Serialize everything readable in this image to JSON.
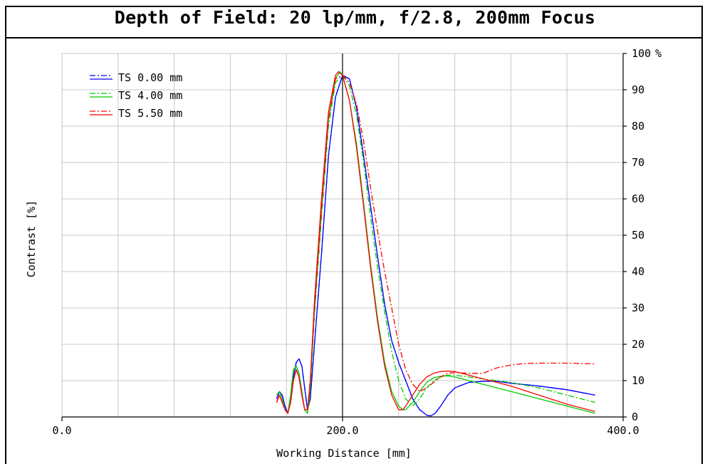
{
  "window": {
    "title": "Depth of Field: 20 lp/mm, f/2.8, 200mm Focus"
  },
  "chart_data": {
    "type": "line",
    "title": "Depth of Field: 20 lp/mm, f/2.8, 200mm Focus",
    "xlabel": "Working Distance [mm]",
    "ylabel": "Contrast [%]",
    "xlim": [
      0,
      400
    ],
    "ylim": [
      0,
      100
    ],
    "x_tick_labels": [
      "0.0",
      "200.0",
      "400.0"
    ],
    "x_grid": [
      0,
      40,
      80,
      120,
      160,
      200,
      240,
      280,
      320,
      360,
      400
    ],
    "y_tick_labels": [
      "0",
      "10",
      "20",
      "30",
      "40",
      "50",
      "60",
      "70",
      "80",
      "90",
      "100"
    ],
    "y_unit_label": "%",
    "grid": true,
    "focus_line_x": 200,
    "legend_position": "top-left",
    "series": [
      {
        "name": "TS 0.00 mm",
        "color": "#0000ff",
        "style": "solid",
        "x": [
          153,
          155,
          157,
          159,
          161,
          163,
          165,
          167,
          169,
          171,
          173,
          175,
          177,
          180,
          185,
          190,
          195,
          200,
          205,
          210,
          215,
          220,
          225,
          230,
          235,
          240,
          245,
          250,
          255,
          260,
          263,
          266,
          270,
          275,
          280,
          290,
          300,
          310,
          320,
          340,
          360,
          380
        ],
        "y": [
          5,
          7,
          6,
          3,
          1,
          5,
          11,
          15,
          16,
          14,
          8,
          2,
          5,
          20,
          45,
          72,
          88,
          94,
          93,
          85,
          72,
          58,
          44,
          31,
          21,
          15,
          10,
          5,
          2,
          0.5,
          0.3,
          1,
          3,
          6,
          8,
          9.5,
          9.8,
          9.8,
          9.3,
          8.5,
          7.5,
          6
        ]
      },
      {
        "name": "TS 0.00 mm",
        "color": "#0000ff",
        "style": "dashdot",
        "x": [
          153,
          155,
          157,
          159,
          161,
          163,
          165,
          167,
          169,
          171,
          173,
          175,
          177,
          180,
          185,
          190,
          195,
          200,
          205,
          210,
          215,
          220,
          225,
          230,
          235,
          240,
          245,
          250,
          255,
          260,
          263,
          266,
          270,
          275,
          280,
          290,
          300,
          310,
          320,
          340,
          360,
          380
        ],
        "y": [
          5,
          7,
          6,
          3,
          1,
          5,
          11,
          15,
          16,
          14,
          8,
          2,
          5,
          20,
          45,
          72,
          88,
          94,
          93,
          85,
          72,
          58,
          44,
          31,
          21,
          15,
          10,
          5,
          2,
          0.5,
          0.3,
          1,
          3,
          6,
          8,
          9.5,
          9.8,
          9.8,
          9.3,
          8.5,
          7.5,
          6
        ]
      },
      {
        "name": "TS 4.00 mm",
        "color": "#00cc00",
        "style": "solid",
        "x": [
          153,
          155,
          157,
          159,
          161,
          163,
          165,
          167,
          169,
          171,
          173,
          175,
          177,
          180,
          185,
          190,
          195,
          198,
          200,
          205,
          210,
          215,
          220,
          225,
          230,
          235,
          240,
          243,
          245,
          250,
          255,
          260,
          265,
          270,
          275,
          280,
          290,
          300,
          310,
          320,
          340,
          360,
          380
        ],
        "y": [
          6,
          7,
          5,
          2,
          1,
          6,
          13,
          14,
          12,
          7,
          2,
          1,
          8,
          30,
          58,
          82,
          93,
          95,
          94,
          87,
          75,
          59,
          42,
          27,
          15,
          7,
          3,
          2,
          2,
          4,
          7,
          9.5,
          10.8,
          11.2,
          11.3,
          11,
          10,
          9,
          8,
          7,
          5,
          3,
          1
        ]
      },
      {
        "name": "TS 4.00 mm",
        "color": "#00cc00",
        "style": "dashdot",
        "x": [
          153,
          155,
          157,
          159,
          161,
          163,
          165,
          167,
          169,
          171,
          173,
          175,
          177,
          180,
          185,
          190,
          195,
          200,
          205,
          210,
          215,
          220,
          225,
          230,
          235,
          240,
          245,
          250,
          255,
          260,
          265,
          270,
          275,
          280,
          290,
          300,
          310,
          320,
          340,
          360,
          380
        ],
        "y": [
          6,
          7,
          5,
          2,
          1,
          6,
          13,
          14,
          12,
          7,
          2,
          1,
          8,
          28,
          55,
          80,
          92,
          94,
          91,
          83,
          70,
          55,
          41,
          29,
          18,
          10,
          5,
          3,
          5,
          8,
          10,
          11,
          11.5,
          11.5,
          11,
          10.5,
          10,
          9.5,
          8,
          6,
          4
        ]
      },
      {
        "name": "TS 5.50 mm",
        "color": "#ff0000",
        "style": "solid",
        "x": [
          153,
          155,
          157,
          159,
          161,
          163,
          165,
          167,
          169,
          171,
          173,
          175,
          177,
          180,
          185,
          190,
          195,
          197,
          200,
          205,
          210,
          215,
          220,
          225,
          230,
          235,
          240,
          243,
          245,
          250,
          255,
          260,
          265,
          270,
          275,
          280,
          290,
          300,
          310,
          320,
          340,
          360,
          380
        ],
        "y": [
          4,
          6,
          4,
          2,
          1,
          4,
          10,
          13,
          11,
          6,
          2,
          2,
          10,
          32,
          60,
          84,
          94,
          95,
          94,
          87,
          74,
          58,
          41,
          26,
          14,
          6,
          2,
          2,
          3,
          6,
          9,
          11,
          12,
          12.5,
          12.6,
          12.5,
          11.5,
          10.5,
          9.5,
          8.5,
          6,
          3.5,
          1.5
        ]
      },
      {
        "name": "TS 5.50 mm",
        "color": "#ff0000",
        "style": "dashdot",
        "x": [
          153,
          155,
          157,
          159,
          161,
          163,
          165,
          167,
          169,
          171,
          173,
          175,
          177,
          180,
          185,
          190,
          195,
          200,
          205,
          210,
          215,
          220,
          225,
          230,
          235,
          240,
          245,
          250,
          255,
          260,
          265,
          270,
          275,
          280,
          290,
          300,
          310,
          320,
          330,
          340,
          360,
          380
        ],
        "y": [
          4,
          6,
          4,
          2,
          1,
          4,
          10,
          13,
          11,
          6,
          2,
          2,
          10,
          30,
          57,
          82,
          93,
          94,
          92,
          86,
          76,
          63,
          51,
          40,
          30,
          20,
          13,
          9,
          7,
          8,
          9.5,
          11,
          12,
          12.2,
          12,
          12,
          13.5,
          14.3,
          14.7,
          14.8,
          14.8,
          14.6
        ]
      }
    ]
  }
}
